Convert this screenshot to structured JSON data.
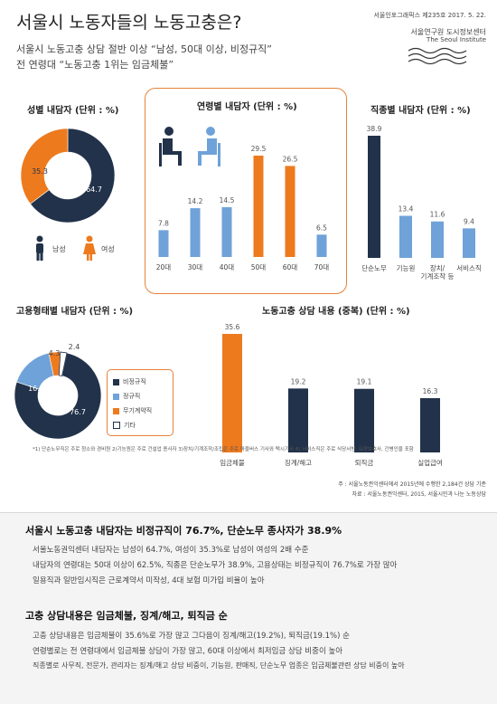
{
  "header": {
    "title": "서울시 노동자들의 노동고충은?",
    "subtitle1": "서울시 노동고충 상담 절반 이상 “남성, 50대 이상, 비정규직”",
    "subtitle2": "전 연령대 “노동고충 1위는 임금체불”",
    "series_label": "서울인포그래픽스 제235호 2017. 5. 22.",
    "publisher": "서울연구원 도시정보센터",
    "publisher_en": "The Seoul Institute"
  },
  "colors": {
    "navy": "#22324a",
    "orange": "#ee7a1e",
    "blue": "#6fa2d8",
    "white": "#ffffff"
  },
  "chart_data": [
    {
      "type": "pie",
      "title": "성별 내담자 (단위 : %)",
      "categories": [
        "남성",
        "여성"
      ],
      "values": [
        64.7,
        35.3
      ]
    },
    {
      "type": "bar",
      "title": "연령별 내담자 (단위 : %)",
      "categories": [
        "20대",
        "30대",
        "40대",
        "50대",
        "60대",
        "70대"
      ],
      "values": [
        7.8,
        14.2,
        14.5,
        29.5,
        26.5,
        6.5
      ]
    },
    {
      "type": "bar",
      "title": "직종별 내담자 (단위 : %)",
      "categories": [
        "단순노무",
        "기능원",
        "장치/기계조작 등",
        "서비스직"
      ],
      "values": [
        38.9,
        13.4,
        11.6,
        9.4
      ]
    },
    {
      "type": "pie",
      "title": "고용형태별 내담자 (단위 : %)",
      "categories": [
        "비정규직",
        "정규직",
        "무기계약직",
        "기타"
      ],
      "values": [
        76.7,
        16.6,
        4.3,
        2.4
      ]
    },
    {
      "type": "bar",
      "title": "노동고충 상담 내용 (중복) (단위 : %)",
      "categories": [
        "임금체불",
        "징계/해고",
        "퇴직금",
        "실업급여"
      ],
      "values": [
        35.6,
        19.2,
        19.1,
        16.3
      ]
    }
  ],
  "labels": {
    "cat3_line1": "장치/",
    "cat3_line2": "기계조작 등",
    "footnote1": "*1) 단순노무직은 주로 청소와 경비원 2)기능원은 주로 건설업 종사자 3)장치/기계조작/조립은 주로 마을버스 기사와 택시기사 4) 서비스직은 주로 식당서빙, 요양보호사, 간병인을 포함",
    "note1": "주 : 서울노동권익센터에서 2015년에 수행한 2,184건 상담 기준",
    "note2": "자료 : 서울노동권익센터, 2015, 서울시민과 나눈 노동상담"
  },
  "summary": {
    "heading1": "서울시 노동고충 내담자는 비정규직이 76.7%, 단순노무 종사자가 38.9%",
    "items1": [
      "서울노동권익센터 내담자는 남성이 64.7%, 여성이 35.3%로 남성이 여성의 2배 수준",
      "내담자의 연령대는 50대 이상이 62.5%, 직종은 단순노무가 38.9%, 고용상태는 비정규직이 76.7%로 가장 많아",
      "일용직과 일반임시직은 근로계약서 미작성, 4대 보험 미가입 비율이 높아"
    ],
    "heading2": "고충 상담내용은 임금체불, 징계/해고, 퇴직금 순",
    "items2": [
      "고충 상담내용은 임금체불이 35.6%로 가장 많고 그다음이 징계/해고(19.2%), 퇴직금(19.1%) 순",
      "연령별로는 전 연령대에서 임금체불 상담이 가장 많고, 60대 이상에서 최저임금 상담 비중이 높아",
      "직종별로 사무직, 전문가, 관리자는 징계/해고 상담 비중이, 기능원, 판매직, 단순노무 업종은 임금체불관련 상담 비중이 높아"
    ]
  }
}
